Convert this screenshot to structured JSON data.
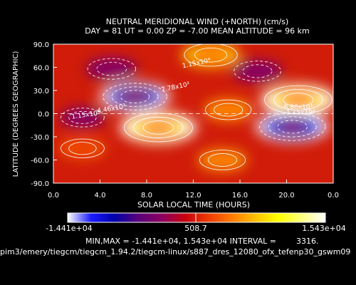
{
  "chart_data": {
    "type": "heatmap",
    "title": "NEUTRAL MERIDIONAL WIND (+NORTH) (cm/s)",
    "subtitle": "DAY =   81   UT =   0.00   ZP =   -7.00   MEAN ALTITUDE =   96  km",
    "xlabel": "SOLAR LOCAL TIME (HOURS)",
    "ylabel": "LATITUDE (DEGREES GEOGRAPHIC)",
    "xlim": [
      0,
      24
    ],
    "ylim": [
      -90,
      90
    ],
    "x_ticks": [
      "0.0",
      "4.0",
      "8.0",
      "12.0",
      "16.0",
      "20.0",
      "0.0"
    ],
    "y_ticks": [
      "90.0",
      "60.0",
      "30.0",
      "0.0",
      "-30.0",
      "-60.0",
      "-90.0"
    ],
    "colorbar": {
      "min_label": "-1.441e+04",
      "mid_label": "508.7",
      "max_label": "1.543e+04",
      "colors": [
        "#ffffff",
        "#1a1aff",
        "#0000aa",
        "#5a007a",
        "#8a0060",
        "#c80010",
        "#ee3a00",
        "#ff7a00",
        "#ffc000",
        "#ffff00",
        "#ffff80",
        "#ffffff"
      ]
    },
    "stats": "MIN,MAX = -1.441e+04, 1.543e+04 INTERVAL =        3316.",
    "contour_labels": [
      "1.15x10⁴",
      "7.78x10³",
      "4.46x10³",
      "1.15x10⁴",
      "6.80x10³",
      "1.15x10⁴"
    ],
    "blobs": [
      {
        "x": 9.0,
        "y": -18,
        "value": 15430
      },
      {
        "x": 21.0,
        "y": 18,
        "value": 15000
      },
      {
        "x": 13.5,
        "y": 76,
        "value": 9000
      },
      {
        "x": 7.0,
        "y": 22,
        "value": -13500
      },
      {
        "x": 20.5,
        "y": -17,
        "value": -14410
      },
      {
        "x": 5.0,
        "y": 58,
        "value": -7000
      },
      {
        "x": 17.5,
        "y": 55,
        "value": -6500
      },
      {
        "x": 2.5,
        "y": -5,
        "value": -5000
      },
      {
        "x": 15.0,
        "y": 5,
        "value": 6000
      },
      {
        "x": 2.5,
        "y": -45,
        "value": 5000
      },
      {
        "x": 14.5,
        "y": -60,
        "value": 6000
      }
    ]
  },
  "footer": {
    "path": "pim3/emery/tiegcm/tiegcm_1.94.2/tiegcm-linux/s887_dres_12080_ofx_tefenp30_gswm09"
  }
}
